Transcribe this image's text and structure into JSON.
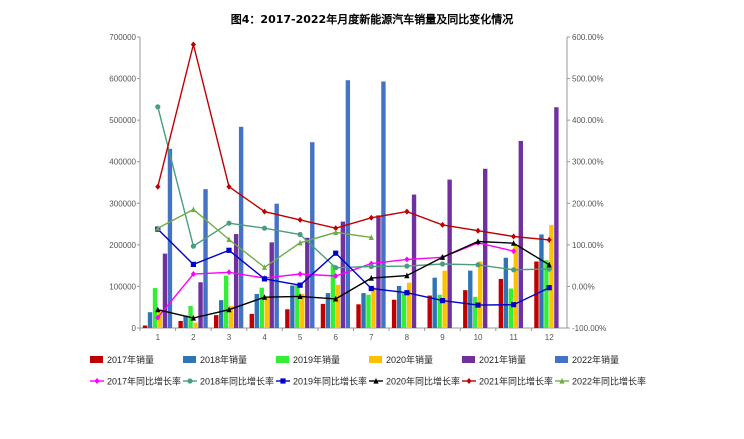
{
  "chart_data": {
    "type": "bar",
    "title": "图4：2017-2022年月度新能源汽车销量及同比变化情况",
    "categories": [
      "1",
      "2",
      "3",
      "4",
      "5",
      "6",
      "7",
      "8",
      "9",
      "10",
      "11",
      "12"
    ],
    "y_left": {
      "ticks": [
        "0",
        "100000",
        "200000",
        "300000",
        "400000",
        "500000",
        "600000",
        "700000"
      ],
      "range": [
        0,
        700000
      ]
    },
    "y_right": {
      "ticks": [
        "-100.00%",
        "0.00%",
        "100.00%",
        "200.00%",
        "300.00%",
        "400.00%",
        "500.00%",
        "600.00%"
      ],
      "range": [
        -100,
        600
      ]
    },
    "bar_series": [
      {
        "name": "2017年销量",
        "color": "#c00000",
        "values": [
          6000,
          17000,
          31000,
          34000,
          45000,
          58000,
          57000,
          68000,
          78000,
          91000,
          118000,
          160000
        ]
      },
      {
        "name": "2018年销量",
        "color": "#2e75b6",
        "values": [
          38000,
          30000,
          67000,
          82000,
          102000,
          84000,
          84000,
          101000,
          121000,
          138000,
          169000,
          225000
        ]
      },
      {
        "name": "2019年销量",
        "color": "#33ee33",
        "values": [
          96000,
          53000,
          126000,
          97000,
          104000,
          152000,
          80000,
          85000,
          80000,
          75000,
          95000,
          163000
        ]
      },
      {
        "name": "2020年销量",
        "color": "#ffc000",
        "values": [
          44000,
          13000,
          53000,
          72000,
          82000,
          104000,
          98000,
          109000,
          138000,
          160000,
          200000,
          248000
        ]
      },
      {
        "name": "2021年销量",
        "color": "#7030a0",
        "values": [
          179000,
          110000,
          226000,
          206000,
          217000,
          256000,
          271000,
          321000,
          357000,
          383000,
          450000,
          531000
        ]
      },
      {
        "name": "2022年销量",
        "color": "#4472c4",
        "values": [
          431000,
          334000,
          484000,
          299000,
          447000,
          596000,
          593000,
          null,
          null,
          null,
          null,
          null
        ]
      }
    ],
    "line_series": [
      {
        "name": "2017年同比增长率",
        "color": "#ff00ff",
        "marker": "diamond",
        "values": [
          -75,
          30,
          34,
          20,
          30,
          25,
          55,
          65,
          70,
          105,
          85,
          null
        ]
      },
      {
        "name": "2018年同比增长率",
        "color": "#4a9e7e",
        "marker": "circle",
        "values": [
          432,
          97,
          152,
          140,
          125,
          45,
          48,
          49,
          54,
          52,
          40,
          42
        ]
      },
      {
        "name": "2019年同比增长率",
        "color": "#0000cc",
        "marker": "square",
        "values": [
          138,
          53,
          87,
          18,
          3,
          80,
          -5,
          -15,
          -34,
          -45,
          -44,
          -3
        ]
      },
      {
        "name": "2020年同比增长率",
        "color": "#000000",
        "marker": "triangle",
        "values": [
          -56,
          -76,
          -56,
          -26,
          -24,
          -30,
          20,
          26,
          70,
          108,
          104,
          52
        ]
      },
      {
        "name": "2021年同比增长率",
        "color": "#c00000",
        "marker": "diamond",
        "values": [
          240,
          582,
          240,
          180,
          160,
          140,
          165,
          180,
          148,
          134,
          120,
          112
        ]
      },
      {
        "name": "2022年同比增长率",
        "color": "#70ad47",
        "marker": "triangle",
        "values": [
          140,
          185,
          113,
          46,
          105,
          130,
          118,
          null,
          null,
          null,
          null,
          null
        ]
      }
    ]
  }
}
